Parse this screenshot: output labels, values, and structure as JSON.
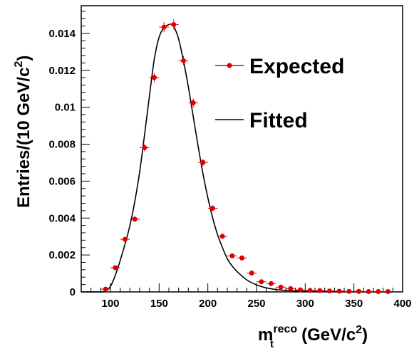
{
  "chart_data": {
    "type": "scatter",
    "x_axis": {
      "label_main": "m",
      "label_sub": "t",
      "label_sup": "reco",
      "label_units_open": "(GeV/c",
      "label_units_sup": "2",
      "label_units_close": ")",
      "range": [
        70,
        400
      ],
      "ticks": [
        "100",
        "150",
        "200",
        "250",
        "300",
        "350",
        "400"
      ],
      "tick_values": [
        100,
        150,
        200,
        250,
        300,
        350,
        400
      ]
    },
    "y_axis": {
      "label_main": "Entries/(10 GeV/c",
      "label_sup": "2",
      "label_close": ")",
      "range": [
        0,
        0.0155
      ],
      "ticks": [
        "0",
        "0.002",
        "0.004",
        "0.006",
        "0.008",
        "0.01",
        "0.012",
        "0.014"
      ],
      "tick_values": [
        0,
        0.002,
        0.004,
        0.006,
        0.008,
        0.01,
        0.012,
        0.014
      ]
    },
    "legend": {
      "placement": "top-right",
      "entries": [
        {
          "label": "Expected",
          "style": "marker-with-line"
        },
        {
          "label": "Fitted",
          "style": "line"
        }
      ]
    },
    "series": [
      {
        "name": "Expected",
        "style": "points-with-errors",
        "color": "#e00000",
        "x": [
          95,
          105,
          115,
          125,
          135,
          145,
          155,
          165,
          175,
          185,
          195,
          205,
          215,
          225,
          235,
          245,
          255,
          265,
          275,
          285,
          295,
          305,
          315,
          325,
          335,
          345,
          355,
          365,
          375,
          385
        ],
        "y": [
          0.00015,
          0.00131,
          0.00285,
          0.00394,
          0.00781,
          0.01161,
          0.01434,
          0.01448,
          0.01252,
          0.01024,
          0.00701,
          0.00453,
          0.00301,
          0.00195,
          0.00184,
          0.00102,
          0.00055,
          0.00045,
          0.00026,
          0.00018,
          0.00011,
          8e-05,
          7e-05,
          5e-05,
          4e-05,
          3e-05,
          3e-05,
          2e-05,
          2e-05,
          2e-05
        ],
        "y_err": [
          3e-05,
          0.0001,
          0.00013,
          0.00015,
          0.0002,
          0.00025,
          0.00028,
          0.00028,
          0.00026,
          0.00024,
          0.0002,
          0.00016,
          0.00013,
          0.00011,
          0.0001,
          8e-05,
          5e-05,
          5e-05,
          4e-05,
          3e-05,
          3e-05,
          2e-05,
          2e-05,
          2e-05,
          1e-05,
          1e-05,
          1e-05,
          1e-05,
          1e-05,
          1e-05
        ]
      },
      {
        "name": "Fitted",
        "style": "line",
        "color": "#000000",
        "x": [
          70,
          90,
          95,
          100,
          105,
          110,
          115,
          120,
          125,
          130,
          135,
          140,
          145,
          150,
          155,
          160,
          163,
          165,
          170,
          175,
          180,
          185,
          190,
          195,
          200,
          205,
          210,
          215,
          220,
          225,
          230,
          240,
          250,
          260,
          270,
          280,
          290,
          300,
          320,
          340,
          360,
          380,
          390
        ],
        "y": [
          0,
          0,
          5e-05,
          0.0003,
          0.0009,
          0.0017,
          0.0026,
          0.0036,
          0.0049,
          0.0065,
          0.0085,
          0.0106,
          0.0126,
          0.0138,
          0.0143,
          0.01448,
          0.0145,
          0.0144,
          0.0137,
          0.0125,
          0.0111,
          0.0095,
          0.0079,
          0.0064,
          0.0051,
          0.004,
          0.0031,
          0.0024,
          0.0018,
          0.0014,
          0.0011,
          0.00065,
          0.00038,
          0.00022,
          0.00013,
          8e-05,
          5e-05,
          3e-05,
          1.5e-05,
          8e-06,
          4e-06,
          2e-06,
          1e-06
        ]
      }
    ]
  }
}
